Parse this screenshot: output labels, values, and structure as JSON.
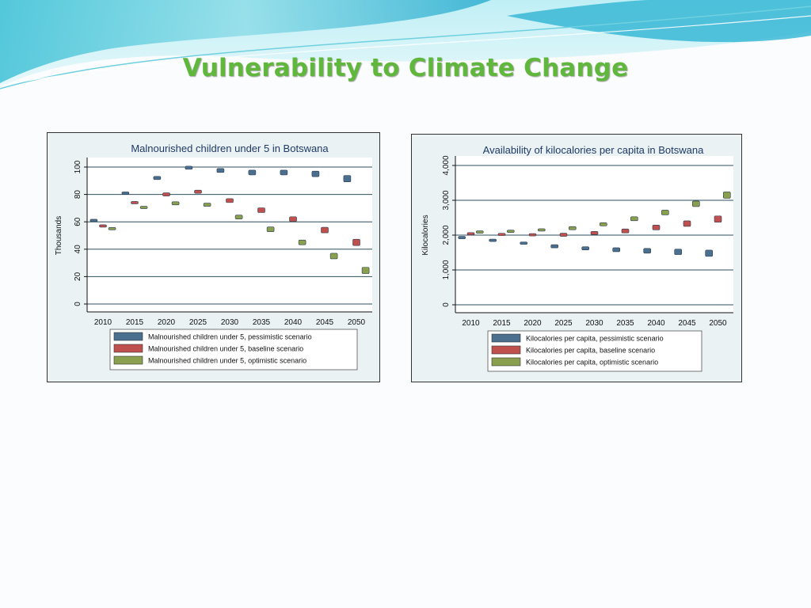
{
  "slide": {
    "title": "Vulnerability to Climate Change"
  },
  "colors": {
    "pessimistic": "#4a6f8f",
    "baseline": "#c0504d",
    "optimistic": "#8aa04f",
    "gridline": "#2f4f5f",
    "plot_background": "#ffffff",
    "title_green": "#5fb83c"
  },
  "chart_data": [
    {
      "type": "scatter",
      "title": "Malnourished children under 5 in Botswana",
      "ylabel": "Thousands",
      "xlabel": "",
      "x": [
        "2010",
        "2015",
        "2020",
        "2025",
        "2030",
        "2035",
        "2040",
        "2045",
        "2050"
      ],
      "ylim": [
        0,
        100
      ],
      "yticks": [
        "0",
        "20",
        "40",
        "60",
        "80",
        "100"
      ],
      "ytick_values": [
        0,
        20,
        40,
        60,
        80,
        100
      ],
      "grid": true,
      "legend_position": "bottom",
      "series": [
        {
          "name": "Malnourished children under 5, pessimistic scenario",
          "key": "pessimistic",
          "values": [
            61,
            81,
            92,
            99.5,
            97.5,
            96,
            96,
            95,
            91.5
          ]
        },
        {
          "name": "Malnourished children under 5, baseline scenario",
          "key": "baseline",
          "values": [
            57,
            74,
            80,
            82,
            75.5,
            68.5,
            62,
            54,
            45
          ]
        },
        {
          "name": "Malnourished children under 5, optimistic scenario",
          "key": "optimistic",
          "values": [
            55,
            70.5,
            73.5,
            72.5,
            63.5,
            54.5,
            45,
            35,
            24.5
          ]
        }
      ]
    },
    {
      "type": "scatter",
      "title": "Availability of kilocalories per capita in Botswana",
      "ylabel": "Kilocalories",
      "xlabel": "",
      "x": [
        "2010",
        "2015",
        "2020",
        "2025",
        "2030",
        "2035",
        "2040",
        "2045",
        "2050"
      ],
      "ylim": [
        0,
        4000
      ],
      "yticks": [
        "0",
        "1,000",
        "2,000",
        "3,000",
        "4,000"
      ],
      "ytick_values": [
        0,
        1000,
        2000,
        3000,
        4000
      ],
      "grid": true,
      "legend_position": "bottom",
      "series": [
        {
          "name": "Kilocalories per capita, pessimistic scenario",
          "key": "pessimistic",
          "values": [
            1930,
            1850,
            1770,
            1680,
            1620,
            1580,
            1550,
            1520,
            1480
          ]
        },
        {
          "name": "Kilocalories per capita, baseline scenario",
          "key": "baseline",
          "values": [
            2040,
            2020,
            2010,
            2010,
            2060,
            2120,
            2220,
            2330,
            2460
          ]
        },
        {
          "name": "Kilocalories per capita, optimistic scenario",
          "key": "optimistic",
          "values": [
            2090,
            2110,
            2150,
            2200,
            2310,
            2470,
            2650,
            2900,
            3150
          ]
        }
      ]
    }
  ]
}
